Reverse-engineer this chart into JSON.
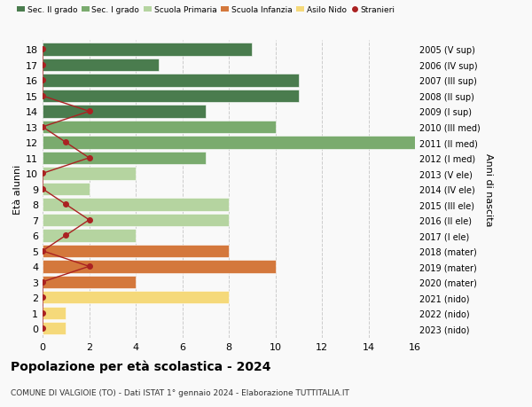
{
  "ages": [
    18,
    17,
    16,
    15,
    14,
    13,
    12,
    11,
    10,
    9,
    8,
    7,
    6,
    5,
    4,
    3,
    2,
    1,
    0
  ],
  "right_labels": [
    "2005 (V sup)",
    "2006 (IV sup)",
    "2007 (III sup)",
    "2008 (II sup)",
    "2009 (I sup)",
    "2010 (III med)",
    "2011 (II med)",
    "2012 (I med)",
    "2013 (V ele)",
    "2014 (IV ele)",
    "2015 (III ele)",
    "2016 (II ele)",
    "2017 (I ele)",
    "2018 (mater)",
    "2019 (mater)",
    "2020 (mater)",
    "2021 (nido)",
    "2022 (nido)",
    "2023 (nido)"
  ],
  "bar_values": [
    9,
    5,
    11,
    11,
    7,
    10,
    16,
    7,
    4,
    2,
    8,
    8,
    4,
    8,
    10,
    4,
    8,
    1,
    1
  ],
  "bar_colors": [
    "#4a7c4e",
    "#4a7c4e",
    "#4a7c4e",
    "#4a7c4e",
    "#4a7c4e",
    "#7aab6e",
    "#7aab6e",
    "#7aab6e",
    "#b5d4a0",
    "#b5d4a0",
    "#b5d4a0",
    "#b5d4a0",
    "#b5d4a0",
    "#d4783c",
    "#d4783c",
    "#d4783c",
    "#f5d97a",
    "#f5d97a",
    "#f5d97a"
  ],
  "stranieri_values": [
    0,
    0,
    0,
    0,
    2,
    0,
    1,
    2,
    0,
    0,
    1,
    2,
    1,
    0,
    2,
    0,
    0,
    0,
    0
  ],
  "title": "Popolazione per età scolastica - 2024",
  "subtitle": "COMUNE DI VALGIOIE (TO) - Dati ISTAT 1° gennaio 2024 - Elaborazione TUTTITALIA.IT",
  "ylabel_left": "Età alunni",
  "ylabel_right": "Anni di nascita",
  "xlim": [
    0,
    16
  ],
  "xticks": [
    0,
    2,
    4,
    6,
    8,
    10,
    12,
    14,
    16
  ],
  "legend_entries": [
    "Sec. II grado",
    "Sec. I grado",
    "Scuola Primaria",
    "Scuola Infanzia",
    "Asilo Nido",
    "Stranieri"
  ],
  "legend_colors": [
    "#4a7c4e",
    "#7aab6e",
    "#b5d4a0",
    "#d4783c",
    "#f5d97a",
    "#aa2222"
  ],
  "bg_color": "#f9f9f9",
  "grid_color": "#cccccc",
  "bar_height": 0.82,
  "ylim": [
    -0.6,
    18.6
  ]
}
